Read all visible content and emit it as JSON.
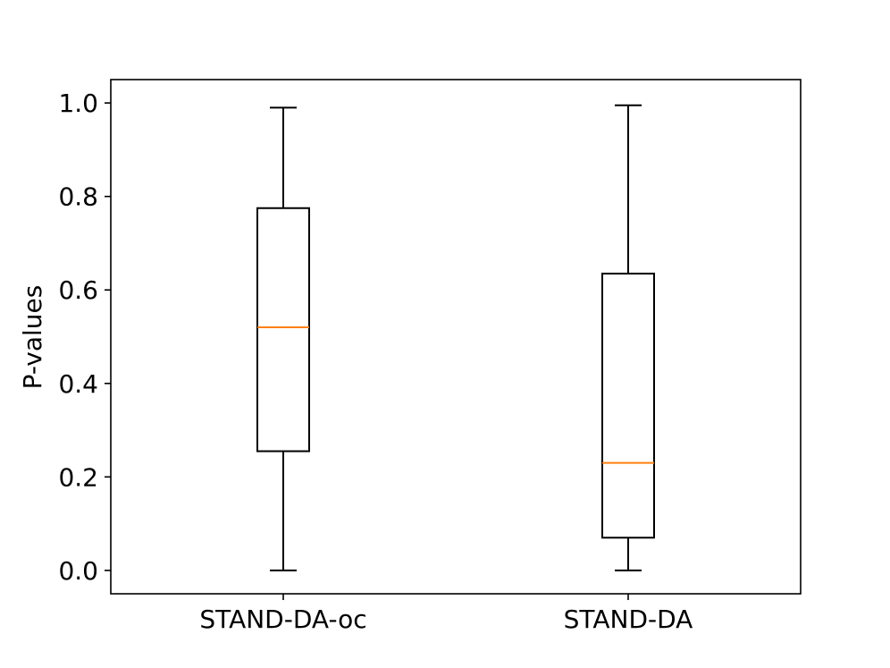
{
  "chart_data": {
    "type": "boxplot",
    "title": "",
    "xlabel": "",
    "ylabel": "P-values",
    "categories": [
      "STAND-DA-oc",
      "STAND-DA"
    ],
    "boxes": [
      {
        "whisker_low": 0.0,
        "q1": 0.255,
        "median": 0.52,
        "q3": 0.775,
        "whisker_high": 0.99
      },
      {
        "whisker_low": 0.0,
        "q1": 0.07,
        "median": 0.23,
        "q3": 0.635,
        "whisker_high": 0.995
      }
    ],
    "ylim": [
      -0.05,
      1.05
    ],
    "yticks": [
      0.0,
      0.2,
      0.4,
      0.6,
      0.8,
      1.0
    ],
    "ytick_labels": [
      "0.0",
      "0.2",
      "0.4",
      "0.6",
      "0.8",
      "1.0"
    ],
    "grid": false,
    "legend": "none",
    "colors": {
      "box": "#000000",
      "median": "#ff7f0e",
      "axes": "#000000"
    }
  }
}
